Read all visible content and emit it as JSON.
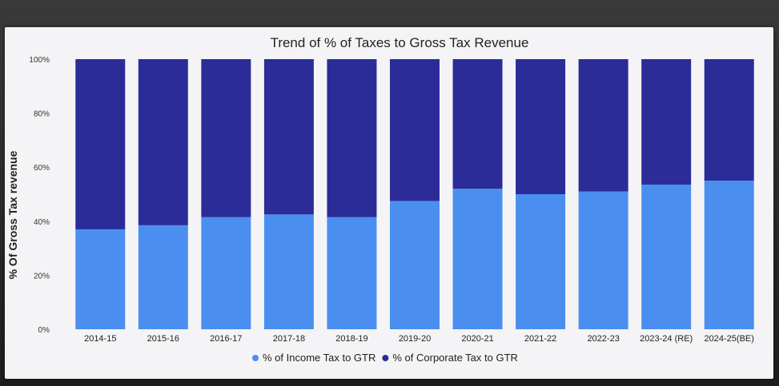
{
  "chart_data": {
    "type": "bar",
    "stacked": true,
    "title": "Trend of % of Taxes to Gross Tax Revenue",
    "xlabel": "",
    "ylabel": "% Of Gross Tax revenue",
    "ylim": [
      0,
      100
    ],
    "yticks": [
      "0%",
      "20%",
      "40%",
      "60%",
      "80%",
      "100%"
    ],
    "grid": false,
    "legend_position": "bottom",
    "categories": [
      "2014-15",
      "2015-16",
      "2016-17",
      "2017-18",
      "2018-19",
      "2019-20",
      "2020-21",
      "2021-22",
      "2022-23",
      "2023-24 (RE)",
      "2024-25(BE)"
    ],
    "series": [
      {
        "name": "% of Income Tax to GTR",
        "color": "#4a8ff0",
        "values": [
          37,
          38.5,
          41.5,
          42.5,
          41.5,
          47.5,
          52,
          50,
          51,
          53.5,
          55
        ]
      },
      {
        "name": "% of Corporate Tax to GTR",
        "color": "#2b2c98",
        "values": [
          63,
          61.5,
          58.5,
          57.5,
          58.5,
          52.5,
          48,
          50,
          49,
          46.5,
          45
        ]
      }
    ]
  }
}
